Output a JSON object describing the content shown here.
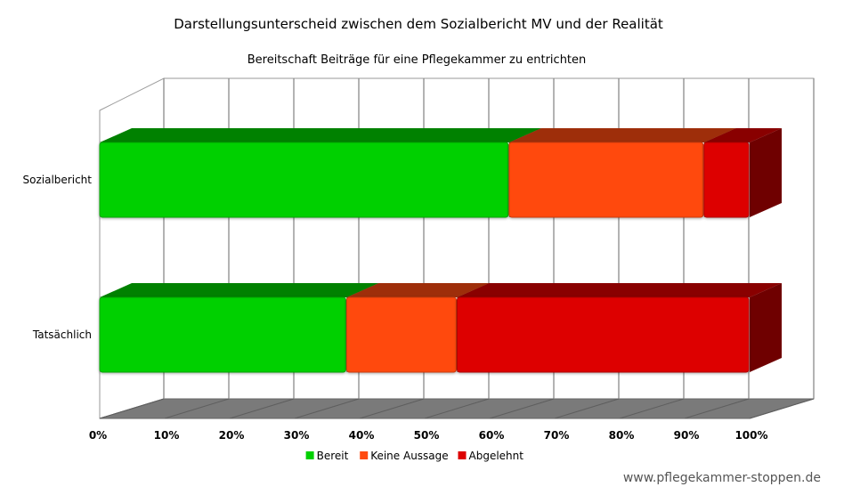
{
  "chart_data": {
    "type": "bar",
    "orientation": "horizontal",
    "stacked": "percent",
    "three_d": true,
    "title": "Darstellungsunterscheid zwischen dem Sozialbericht MV und der Realität",
    "subtitle": "Bereitschaft Beiträge für eine Pflegekammer zu entrichten",
    "categories": [
      "Sozialbericht",
      "Tatsächlich"
    ],
    "series": [
      {
        "name": "Bereit",
        "color": "#00d000",
        "values": [
          63,
          38
        ]
      },
      {
        "name": "Keine Aussage",
        "color": "#ff4a10",
        "values": [
          30,
          17
        ]
      },
      {
        "name": "Abgelehnt",
        "color": "#dd0000",
        "values": [
          7,
          45
        ]
      }
    ],
    "xlim": [
      0,
      100
    ],
    "xticks": [
      "0%",
      "10%",
      "20%",
      "30%",
      "40%",
      "50%",
      "60%",
      "70%",
      "80%",
      "90%",
      "100%"
    ],
    "grid": true,
    "legend_position": "bottom"
  },
  "source_text": "www.pflegekammer-stoppen.de"
}
